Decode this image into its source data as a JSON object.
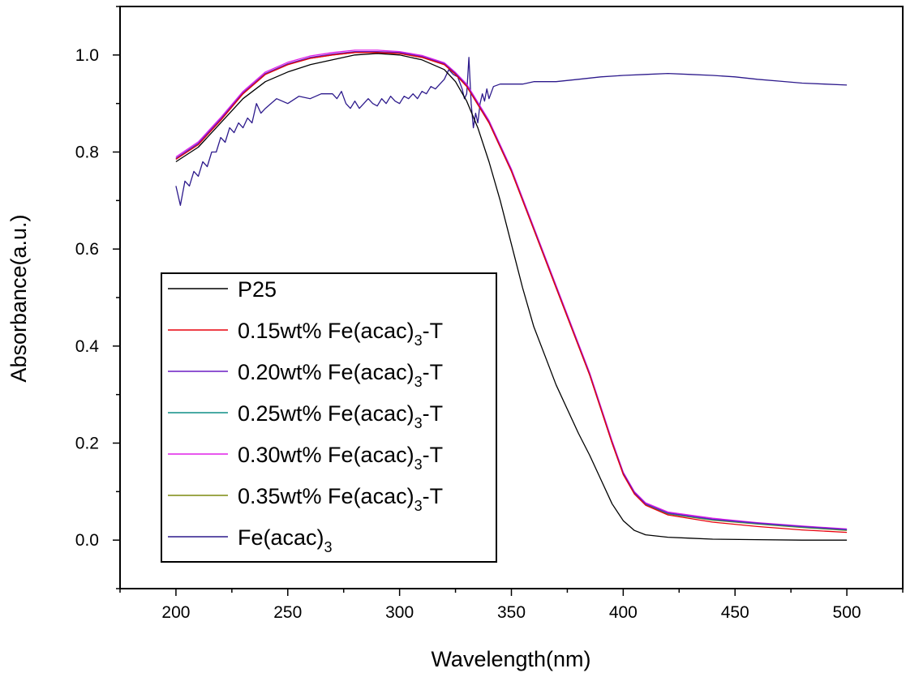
{
  "chart_data": {
    "type": "line",
    "title": "",
    "xlabel": "Wavelength(nm)",
    "ylabel": "Absorbance(a.u.)",
    "xlim": [
      175,
      525
    ],
    "ylim": [
      -0.1,
      1.1
    ],
    "xticks": [
      200,
      250,
      300,
      350,
      400,
      450,
      500
    ],
    "xtick_labels": [
      "200",
      "250",
      "300",
      "350",
      "400",
      "450",
      "500"
    ],
    "yticks": [
      0.0,
      0.2,
      0.4,
      0.6,
      0.8,
      1.0
    ],
    "ytick_labels": [
      "0.0",
      "0.2",
      "0.4",
      "0.6",
      "0.8",
      "1.0"
    ],
    "legend_position": "bottom-left",
    "series": [
      {
        "name": "P25",
        "legend_main": "P25",
        "legend_sub": "",
        "legend_tail": "",
        "color": "#000000",
        "x": [
          200,
          210,
          220,
          230,
          240,
          250,
          260,
          270,
          280,
          290,
          300,
          310,
          320,
          325,
          330,
          335,
          340,
          345,
          350,
          355,
          360,
          365,
          370,
          375,
          380,
          385,
          390,
          395,
          400,
          405,
          410,
          420,
          430,
          440,
          460,
          480,
          500
        ],
        "y": [
          0.78,
          0.81,
          0.86,
          0.91,
          0.945,
          0.965,
          0.98,
          0.99,
          1.0,
          1.003,
          1.0,
          0.99,
          0.97,
          0.945,
          0.905,
          0.85,
          0.78,
          0.7,
          0.61,
          0.52,
          0.44,
          0.38,
          0.32,
          0.27,
          0.22,
          0.175,
          0.125,
          0.075,
          0.04,
          0.02,
          0.011,
          0.006,
          0.004,
          0.002,
          0.001,
          0.0,
          0.0
        ]
      },
      {
        "name": "0.15wt% Fe(acac)3-T",
        "legend_main": "0.15wt% Fe(acac)",
        "legend_sub": "3",
        "legend_tail": "-T",
        "color": "#e8000b",
        "x": [
          200,
          210,
          220,
          230,
          240,
          250,
          260,
          270,
          280,
          290,
          300,
          310,
          320,
          325,
          330,
          340,
          350,
          360,
          370,
          380,
          385,
          390,
          395,
          400,
          405,
          410,
          420,
          440,
          460,
          480,
          500
        ],
        "y": [
          0.785,
          0.815,
          0.865,
          0.92,
          0.96,
          0.98,
          0.993,
          1.0,
          1.005,
          1.005,
          1.003,
          0.995,
          0.98,
          0.96,
          0.935,
          0.86,
          0.76,
          0.64,
          0.52,
          0.4,
          0.34,
          0.27,
          0.2,
          0.135,
          0.095,
          0.072,
          0.052,
          0.037,
          0.028,
          0.021,
          0.016
        ]
      },
      {
        "name": "0.20wt% Fe(acac)3-T",
        "legend_main": "0.20wt% Fe(acac)",
        "legend_sub": "3",
        "legend_tail": "-T",
        "color": "#6a1bc4",
        "x": [
          200,
          210,
          220,
          230,
          240,
          250,
          260,
          270,
          280,
          290,
          300,
          310,
          320,
          325,
          330,
          340,
          350,
          360,
          370,
          380,
          385,
          390,
          395,
          400,
          405,
          410,
          420,
          440,
          460,
          480,
          500
        ],
        "y": [
          0.787,
          0.818,
          0.868,
          0.922,
          0.962,
          0.982,
          0.995,
          1.002,
          1.007,
          1.007,
          1.005,
          0.997,
          0.982,
          0.962,
          0.937,
          0.862,
          0.762,
          0.642,
          0.522,
          0.402,
          0.342,
          0.272,
          0.202,
          0.138,
          0.098,
          0.075,
          0.056,
          0.043,
          0.035,
          0.028,
          0.022
        ]
      },
      {
        "name": "0.25wt% Fe(acac)3-T",
        "legend_main": "0.25wt% Fe(acac)",
        "legend_sub": "3",
        "legend_tail": "-T",
        "color": "#0f8f86",
        "x": [
          200,
          210,
          220,
          230,
          240,
          250,
          260,
          270,
          280,
          290,
          300,
          310,
          320,
          325,
          330,
          340,
          350,
          360,
          370,
          380,
          385,
          390,
          395,
          400,
          405,
          410,
          420,
          440,
          460,
          480,
          500
        ],
        "y": [
          0.786,
          0.817,
          0.867,
          0.921,
          0.961,
          0.981,
          0.994,
          1.001,
          1.006,
          1.006,
          1.004,
          0.996,
          0.981,
          0.961,
          0.936,
          0.861,
          0.761,
          0.641,
          0.521,
          0.401,
          0.341,
          0.271,
          0.201,
          0.137,
          0.097,
          0.074,
          0.055,
          0.042,
          0.034,
          0.027,
          0.021
        ]
      },
      {
        "name": "0.30wt% Fe(acac)3-T",
        "legend_main": "0.30wt% Fe(acac)",
        "legend_sub": "3",
        "legend_tail": "-T",
        "color": "#e020e8",
        "x": [
          200,
          210,
          220,
          230,
          240,
          250,
          260,
          270,
          280,
          290,
          300,
          310,
          320,
          325,
          330,
          340,
          350,
          360,
          370,
          380,
          385,
          390,
          395,
          400,
          405,
          410,
          420,
          440,
          460,
          480,
          500
        ],
        "y": [
          0.79,
          0.821,
          0.871,
          0.925,
          0.965,
          0.985,
          0.998,
          1.005,
          1.01,
          1.01,
          1.007,
          0.999,
          0.984,
          0.964,
          0.94,
          0.865,
          0.765,
          0.645,
          0.525,
          0.405,
          0.345,
          0.275,
          0.205,
          0.14,
          0.1,
          0.077,
          0.058,
          0.045,
          0.036,
          0.029,
          0.023
        ]
      },
      {
        "name": "0.35wt% Fe(acac)3-T",
        "legend_main": "0.35wt% Fe(acac)",
        "legend_sub": "3",
        "legend_tail": "-T",
        "color": "#7c8a0e",
        "x": [
          200,
          210,
          220,
          230,
          240,
          250,
          260,
          270,
          280,
          290,
          300,
          310,
          320,
          325,
          330,
          340,
          350,
          360,
          370,
          380,
          385,
          390,
          395,
          400,
          405,
          410,
          420,
          440,
          460,
          480,
          500
        ],
        "y": [
          0.785,
          0.816,
          0.866,
          0.92,
          0.96,
          0.98,
          0.993,
          1.0,
          1.005,
          1.005,
          1.003,
          0.995,
          0.98,
          0.96,
          0.935,
          0.86,
          0.76,
          0.64,
          0.52,
          0.4,
          0.34,
          0.27,
          0.2,
          0.136,
          0.096,
          0.073,
          0.054,
          0.041,
          0.033,
          0.026,
          0.02
        ]
      },
      {
        "name": "Fe(acac)3",
        "legend_main": "Fe(acac)",
        "legend_sub": "3",
        "legend_tail": "",
        "color": "#2d1a8c",
        "x": [
          200,
          202,
          204,
          206,
          208,
          210,
          212,
          214,
          216,
          218,
          220,
          222,
          224,
          226,
          228,
          230,
          232,
          234,
          236,
          238,
          240,
          245,
          250,
          255,
          260,
          265,
          270,
          272,
          274,
          276,
          278,
          280,
          282,
          284,
          286,
          288,
          290,
          292,
          294,
          296,
          298,
          300,
          302,
          304,
          306,
          308,
          310,
          312,
          314,
          316,
          318,
          320,
          322,
          324,
          326,
          328,
          329,
          330,
          331,
          332,
          333,
          334,
          335,
          336,
          337,
          338,
          339,
          340,
          342,
          345,
          350,
          355,
          360,
          370,
          380,
          390,
          400,
          410,
          420,
          430,
          440,
          450,
          460,
          470,
          480,
          490,
          500
        ],
        "y": [
          0.73,
          0.69,
          0.74,
          0.73,
          0.76,
          0.75,
          0.78,
          0.77,
          0.8,
          0.8,
          0.83,
          0.82,
          0.85,
          0.84,
          0.86,
          0.85,
          0.87,
          0.86,
          0.9,
          0.88,
          0.89,
          0.91,
          0.9,
          0.915,
          0.91,
          0.92,
          0.92,
          0.91,
          0.925,
          0.9,
          0.89,
          0.905,
          0.89,
          0.9,
          0.91,
          0.9,
          0.895,
          0.91,
          0.9,
          0.915,
          0.905,
          0.9,
          0.915,
          0.91,
          0.92,
          0.91,
          0.925,
          0.92,
          0.935,
          0.93,
          0.94,
          0.95,
          0.97,
          0.96,
          0.955,
          0.93,
          0.91,
          0.92,
          0.995,
          0.9,
          0.85,
          0.88,
          0.86,
          0.9,
          0.92,
          0.905,
          0.93,
          0.91,
          0.935,
          0.94,
          0.94,
          0.94,
          0.945,
          0.945,
          0.95,
          0.955,
          0.958,
          0.96,
          0.962,
          0.96,
          0.958,
          0.955,
          0.95,
          0.946,
          0.942,
          0.94,
          0.938
        ]
      }
    ]
  }
}
